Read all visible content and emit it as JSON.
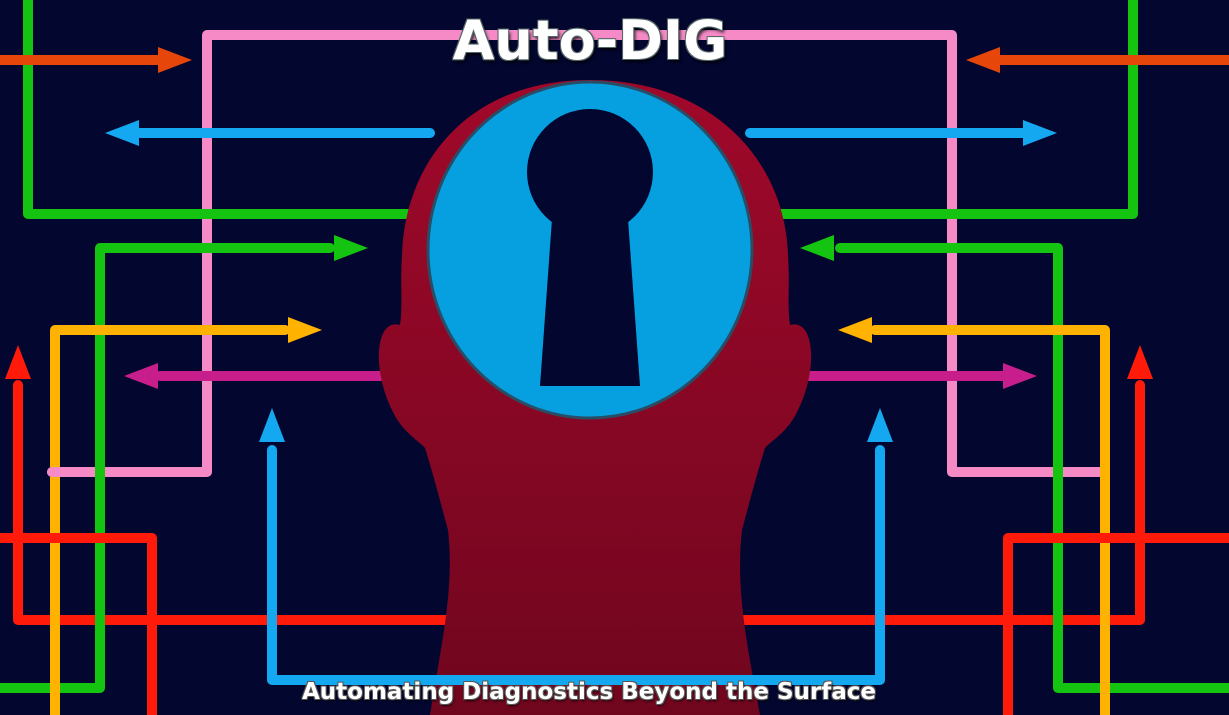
{
  "banner": {
    "title": "Auto-DIG",
    "subtitle": "Automating Diagnostics Beyond the Surface"
  },
  "colors": {
    "background": "#03062f",
    "head": "#8e0a26",
    "keyhole_disc": "#06a0e0",
    "keyhole": "#03062f",
    "red": "#ff1a0a",
    "orange": "#e6460a",
    "pink": "#f58ac6",
    "blue": "#14a8f0",
    "green": "#15c410",
    "yellow": "#ffb300",
    "magenta": "#c81e8c"
  },
  "icons": {
    "head": "head-silhouette-icon",
    "keyhole": "keyhole-icon"
  }
}
